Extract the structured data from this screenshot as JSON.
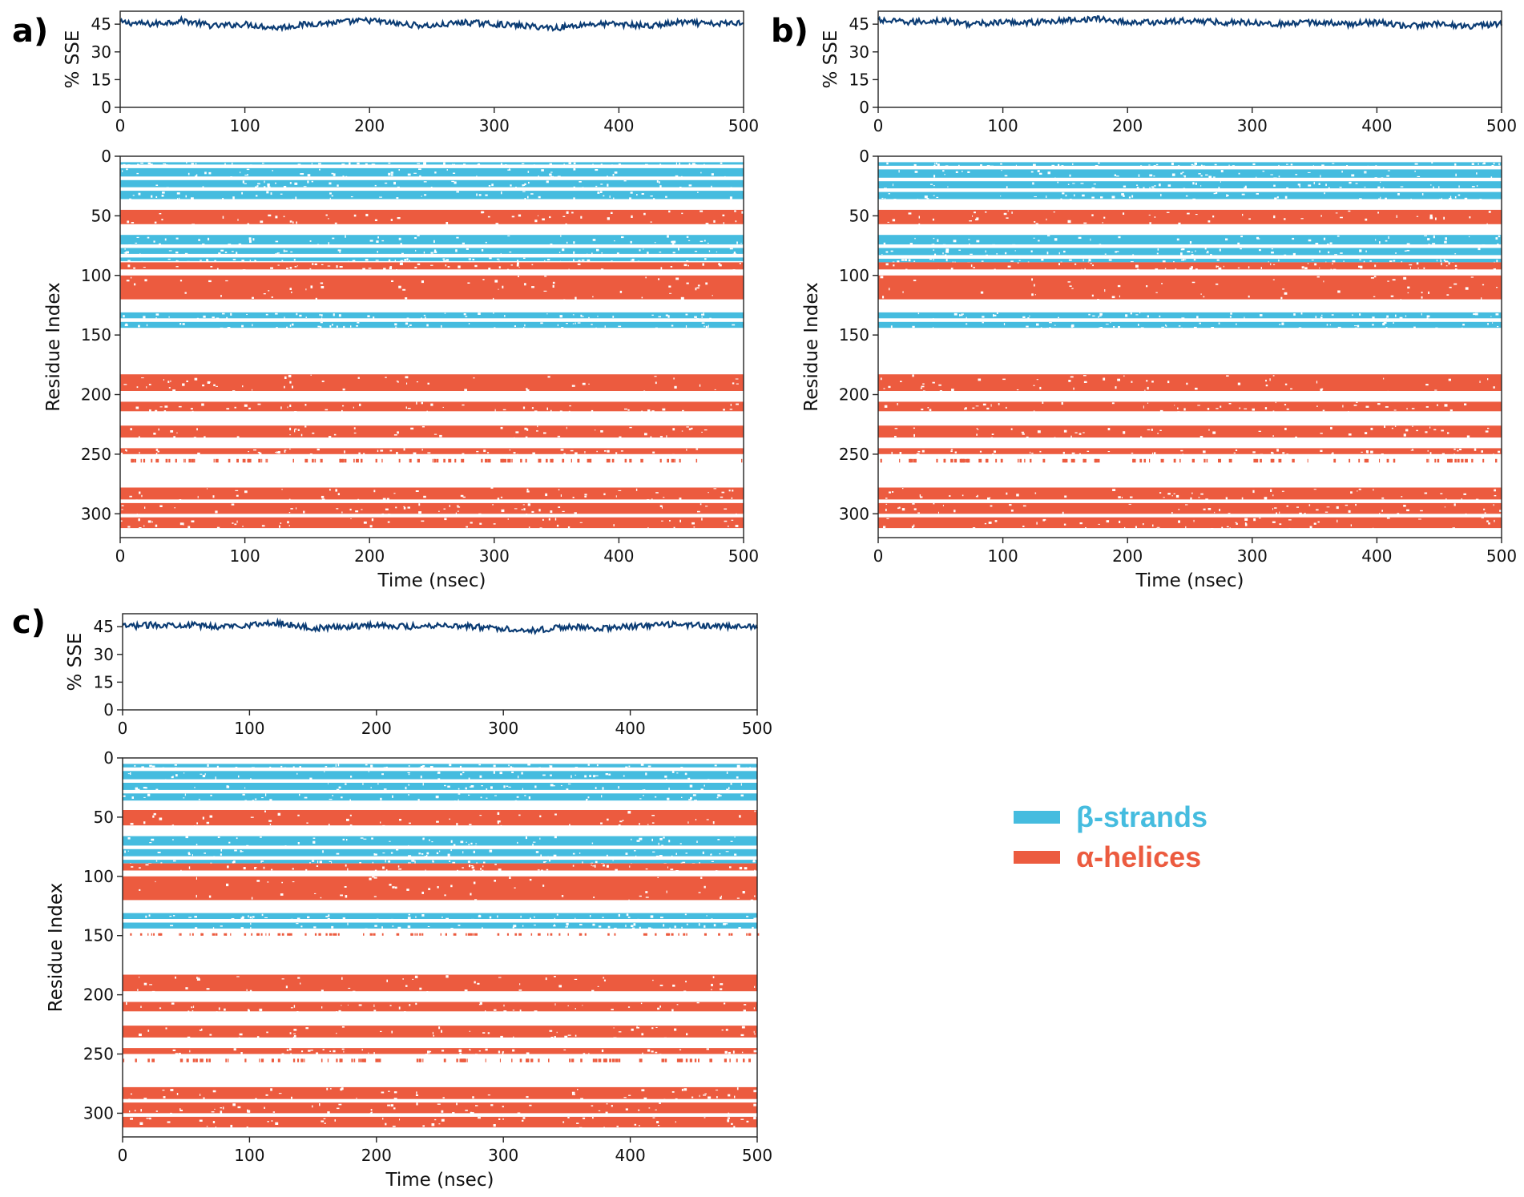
{
  "figure": {
    "panels": [
      {
        "label": "a)"
      },
      {
        "label": "b)"
      },
      {
        "label": "c)"
      }
    ],
    "legend": {
      "items": [
        {
          "name": "strands",
          "label": "β-strands",
          "color": "#45BCDF"
        },
        {
          "name": "helices",
          "label": "α-helices",
          "color": "#EC5B3F"
        }
      ]
    }
  },
  "chart_data": [
    {
      "type": "line",
      "panel": "a)",
      "title": "",
      "xlabel": "",
      "ylabel": "% SSE",
      "xlim": [
        0,
        500
      ],
      "ylim": [
        0,
        52
      ],
      "xticks": [
        0,
        100,
        200,
        300,
        400,
        500
      ],
      "yticks": [
        0,
        15,
        30,
        45
      ],
      "x": [
        0,
        25,
        50,
        75,
        100,
        125,
        150,
        175,
        200,
        225,
        250,
        275,
        300,
        325,
        350,
        375,
        400,
        425,
        450,
        475,
        500
      ],
      "values": [
        46,
        45,
        47,
        44,
        45,
        43,
        45,
        46,
        47,
        45,
        44,
        46,
        45,
        44,
        43,
        45,
        45,
        44,
        46,
        45,
        46
      ],
      "color": "#0B3C74"
    },
    {
      "type": "heatmap",
      "panel": "a)",
      "title": "",
      "xlabel": "Time (nsec)",
      "ylabel": "Residue Index",
      "xlim": [
        0,
        500
      ],
      "ylim": [
        320,
        0
      ],
      "xticks": [
        0,
        100,
        200,
        300,
        400,
        500
      ],
      "yticks": [
        0,
        50,
        100,
        150,
        200,
        250,
        300
      ],
      "series": [
        {
          "name": "β-strands",
          "color": "#45BCDF",
          "residue_ranges": [
            [
              5,
              7
            ],
            [
              10,
              17
            ],
            [
              20,
              26
            ],
            [
              29,
              36
            ],
            [
              66,
              74
            ],
            [
              77,
              82
            ],
            [
              85,
              88
            ],
            [
              131,
              136
            ],
            [
              139,
              144
            ]
          ]
        },
        {
          "name": "α-helices",
          "color": "#EC5B3F",
          "residue_ranges": [
            [
              45,
              57
            ],
            [
              89,
              95
            ],
            [
              100,
              120
            ],
            [
              183,
              197
            ],
            [
              206,
              214
            ],
            [
              226,
              236
            ],
            [
              245,
              250
            ],
            [
              278,
              288
            ],
            [
              291,
              300
            ],
            [
              303,
              312
            ]
          ]
        }
      ]
    },
    {
      "type": "line",
      "panel": "b)",
      "title": "",
      "xlabel": "",
      "ylabel": "% SSE",
      "xlim": [
        0,
        500
      ],
      "ylim": [
        0,
        52
      ],
      "xticks": [
        0,
        100,
        200,
        300,
        400,
        500
      ],
      "yticks": [
        0,
        15,
        30,
        45
      ],
      "x": [
        0,
        25,
        50,
        75,
        100,
        125,
        150,
        175,
        200,
        225,
        250,
        275,
        300,
        325,
        350,
        375,
        400,
        425,
        450,
        475,
        500
      ],
      "values": [
        47,
        46,
        47,
        45,
        46,
        46,
        47,
        48,
        46,
        46,
        47,
        46,
        46,
        45,
        46,
        45,
        46,
        44,
        45,
        44,
        45
      ],
      "color": "#0B3C74"
    },
    {
      "type": "heatmap",
      "panel": "b)",
      "title": "",
      "xlabel": "Time (nsec)",
      "ylabel": "Residue Index",
      "xlim": [
        0,
        500
      ],
      "ylim": [
        320,
        0
      ],
      "xticks": [
        0,
        100,
        200,
        300,
        400,
        500
      ],
      "yticks": [
        0,
        50,
        100,
        150,
        200,
        250,
        300
      ],
      "series": [
        {
          "name": "β-strands",
          "color": "#45BCDF",
          "residue_ranges": [
            [
              5,
              8
            ],
            [
              11,
              18
            ],
            [
              21,
              27
            ],
            [
              30,
              36
            ],
            [
              66,
              74
            ],
            [
              77,
              83
            ],
            [
              86,
              89
            ],
            [
              131,
              136
            ],
            [
              139,
              144
            ]
          ]
        },
        {
          "name": "α-helices",
          "color": "#EC5B3F",
          "residue_ranges": [
            [
              45,
              57
            ],
            [
              89,
              95
            ],
            [
              100,
              120
            ],
            [
              183,
              197
            ],
            [
              206,
              214
            ],
            [
              226,
              236
            ],
            [
              245,
              250
            ],
            [
              278,
              288
            ],
            [
              291,
              300
            ],
            [
              303,
              312
            ]
          ]
        }
      ]
    },
    {
      "type": "line",
      "panel": "c)",
      "title": "",
      "xlabel": "",
      "ylabel": "% SSE",
      "xlim": [
        0,
        500
      ],
      "ylim": [
        0,
        52
      ],
      "xticks": [
        0,
        100,
        200,
        300,
        400,
        500
      ],
      "yticks": [
        0,
        15,
        30,
        45
      ],
      "x": [
        0,
        25,
        50,
        75,
        100,
        125,
        150,
        175,
        200,
        225,
        250,
        275,
        300,
        325,
        350,
        375,
        400,
        425,
        450,
        475,
        500
      ],
      "values": [
        45,
        46,
        46,
        45,
        46,
        47,
        44,
        45,
        46,
        45,
        46,
        45,
        44,
        43,
        45,
        44,
        45,
        46,
        46,
        45,
        45
      ],
      "color": "#0B3C74"
    },
    {
      "type": "heatmap",
      "panel": "c)",
      "title": "",
      "xlabel": "Time (nsec)",
      "ylabel": "Residue Index",
      "xlim": [
        0,
        500
      ],
      "ylim": [
        320,
        0
      ],
      "xticks": [
        0,
        100,
        200,
        300,
        400,
        500
      ],
      "yticks": [
        0,
        50,
        100,
        150,
        200,
        250,
        300
      ],
      "series": [
        {
          "name": "β-strands",
          "color": "#45BCDF",
          "residue_ranges": [
            [
              5,
              8
            ],
            [
              11,
              18
            ],
            [
              21,
              27
            ],
            [
              30,
              36
            ],
            [
              66,
              74
            ],
            [
              77,
              83
            ],
            [
              86,
              89
            ],
            [
              131,
              136
            ],
            [
              139,
              144
            ]
          ]
        },
        {
          "name": "α-helices",
          "color": "#EC5B3F",
          "residue_ranges": [
            [
              44,
              57
            ],
            [
              89,
              95
            ],
            [
              100,
              120
            ],
            [
              183,
              197
            ],
            [
              206,
              214
            ],
            [
              226,
              236
            ],
            [
              245,
              250
            ],
            [
              278,
              288
            ],
            [
              291,
              300
            ],
            [
              303,
              312
            ]
          ]
        }
      ]
    }
  ]
}
